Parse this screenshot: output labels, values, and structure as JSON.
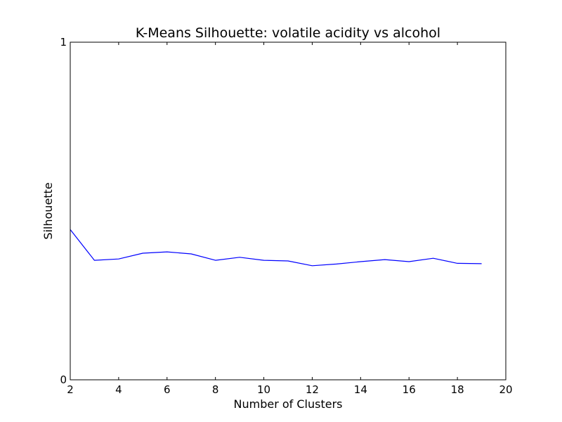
{
  "chart_data": {
    "type": "line",
    "title": "K-Means Silhouette: volatile acidity vs alcohol",
    "xlabel": "Number of Clusters",
    "ylabel": "Silhouette",
    "xlim": [
      2,
      20
    ],
    "ylim": [
      0,
      1
    ],
    "xticks": [
      2,
      4,
      6,
      8,
      10,
      12,
      14,
      16,
      18,
      20
    ],
    "yticks": [
      0,
      1
    ],
    "grid": false,
    "legend": false,
    "series": [
      {
        "color": "#0000ff",
        "x": [
          2,
          3,
          4,
          5,
          6,
          7,
          8,
          9,
          10,
          11,
          12,
          13,
          14,
          15,
          16,
          17,
          18,
          19
        ],
        "y": [
          0.445,
          0.354,
          0.358,
          0.375,
          0.379,
          0.373,
          0.354,
          0.363,
          0.354,
          0.352,
          0.338,
          0.343,
          0.35,
          0.356,
          0.35,
          0.36,
          0.345,
          0.344
        ]
      }
    ]
  }
}
